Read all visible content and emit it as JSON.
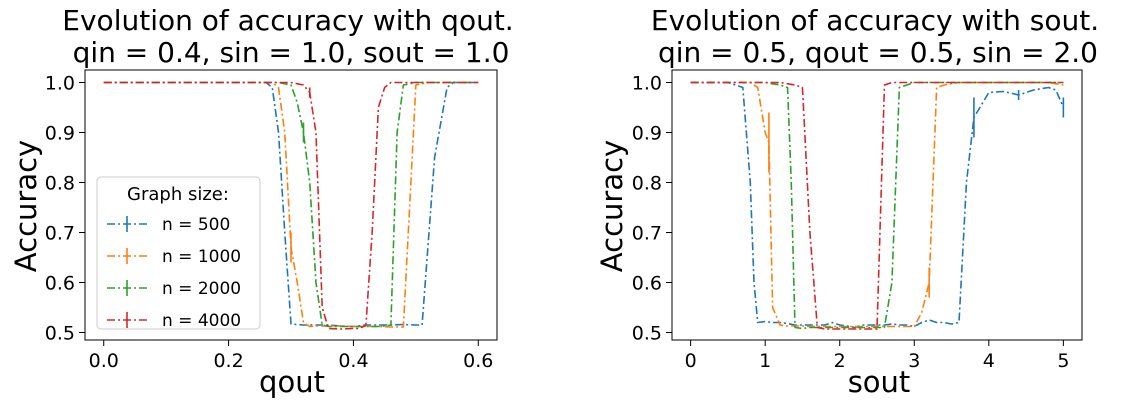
{
  "chart_data": [
    {
      "type": "line",
      "title_line1": "Evolution of accuracy with qout.",
      "title_line2": "qin = 0.4, sin = 1.0, sout = 1.0",
      "xlabel": "qout",
      "ylabel": "Accuracy",
      "xlim": [
        -0.03,
        0.63
      ],
      "ylim": [
        0.485,
        1.025
      ],
      "xticks": [
        0.0,
        0.2,
        0.4,
        0.6
      ],
      "xtick_labels": [
        "0.0",
        "0.2",
        "0.4",
        "0.6"
      ],
      "yticks": [
        0.5,
        0.6,
        0.7,
        0.8,
        0.9,
        1.0
      ],
      "ytick_labels": [
        "0.5",
        "0.6",
        "0.7",
        "0.8",
        "0.9",
        "1.0"
      ],
      "grid": false,
      "legend": {
        "title": "Graph size:",
        "placement": "lower-left",
        "entries": [
          "n = 500",
          "n = 1000",
          "n = 2000",
          "n = 4000"
        ]
      },
      "series": [
        {
          "name": "n = 500",
          "color": "#1f77b4",
          "x": [
            0.0,
            0.04,
            0.08,
            0.12,
            0.16,
            0.2,
            0.24,
            0.26,
            0.27,
            0.28,
            0.29,
            0.3,
            0.32,
            0.34,
            0.36,
            0.38,
            0.4,
            0.42,
            0.44,
            0.46,
            0.48,
            0.5,
            0.51,
            0.53,
            0.55,
            0.56,
            0.58,
            0.6
          ],
          "y": [
            1.0,
            1.0,
            1.0,
            1.0,
            1.0,
            1.0,
            1.0,
            1.0,
            0.99,
            0.9,
            0.7,
            0.517,
            0.515,
            0.515,
            0.515,
            0.513,
            0.512,
            0.515,
            0.515,
            0.515,
            0.516,
            0.515,
            0.515,
            0.85,
            0.99,
            1.0,
            1.0,
            1.0
          ],
          "err": [
            0,
            0,
            0,
            0,
            0,
            0,
            0,
            0,
            0,
            0,
            0,
            0,
            0,
            0,
            0,
            0,
            0,
            0,
            0,
            0,
            0,
            0,
            0,
            0,
            0,
            0,
            0,
            0
          ]
        },
        {
          "name": "n = 1000",
          "color": "#ff7f0e",
          "x": [
            0.0,
            0.04,
            0.08,
            0.12,
            0.16,
            0.2,
            0.24,
            0.27,
            0.28,
            0.29,
            0.3,
            0.31,
            0.32,
            0.33,
            0.34,
            0.36,
            0.38,
            0.4,
            0.42,
            0.44,
            0.46,
            0.48,
            0.49,
            0.5,
            0.52,
            0.54,
            0.56,
            0.58,
            0.6
          ],
          "y": [
            1.0,
            1.0,
            1.0,
            1.0,
            1.0,
            1.0,
            1.0,
            1.0,
            0.99,
            0.9,
            0.67,
            0.6,
            0.52,
            0.512,
            0.513,
            0.513,
            0.513,
            0.512,
            0.512,
            0.512,
            0.511,
            0.511,
            0.75,
            0.995,
            1.0,
            1.0,
            1.0,
            1.0,
            1.0
          ],
          "err": [
            0,
            0,
            0,
            0,
            0,
            0,
            0,
            0,
            0,
            0,
            0.03,
            0,
            0,
            0,
            0,
            0,
            0,
            0,
            0,
            0,
            0,
            0,
            0,
            0,
            0,
            0,
            0,
            0,
            0
          ]
        },
        {
          "name": "n = 2000",
          "color": "#2ca02c",
          "x": [
            0.0,
            0.04,
            0.08,
            0.12,
            0.16,
            0.2,
            0.24,
            0.28,
            0.3,
            0.31,
            0.32,
            0.33,
            0.34,
            0.35,
            0.36,
            0.38,
            0.4,
            0.42,
            0.44,
            0.45,
            0.46,
            0.47,
            0.48,
            0.5,
            0.52,
            0.54,
            0.56,
            0.58,
            0.6
          ],
          "y": [
            1.0,
            1.0,
            1.0,
            1.0,
            1.0,
            1.0,
            1.0,
            1.0,
            0.995,
            0.96,
            0.9,
            0.8,
            0.6,
            0.515,
            0.512,
            0.512,
            0.512,
            0.512,
            0.512,
            0.513,
            0.515,
            0.9,
            0.995,
            1.0,
            1.0,
            1.0,
            1.0,
            1.0,
            1.0
          ],
          "err": [
            0,
            0,
            0,
            0,
            0,
            0,
            0,
            0,
            0,
            0,
            0.02,
            0,
            0,
            0,
            0,
            0,
            0,
            0,
            0,
            0,
            0,
            0,
            0,
            0,
            0,
            0,
            0,
            0,
            0
          ]
        },
        {
          "name": "n = 4000",
          "color": "#d62728",
          "x": [
            0.0,
            0.04,
            0.08,
            0.12,
            0.16,
            0.2,
            0.24,
            0.28,
            0.3,
            0.32,
            0.33,
            0.34,
            0.35,
            0.36,
            0.38,
            0.4,
            0.41,
            0.42,
            0.43,
            0.44,
            0.45,
            0.46,
            0.48,
            0.5,
            0.52,
            0.54,
            0.56,
            0.58,
            0.6
          ],
          "y": [
            1.0,
            1.0,
            1.0,
            1.0,
            1.0,
            1.0,
            1.0,
            1.0,
            1.0,
            0.995,
            0.98,
            0.9,
            0.55,
            0.508,
            0.507,
            0.508,
            0.508,
            0.515,
            0.7,
            0.95,
            0.99,
            1.0,
            1.0,
            1.0,
            1.0,
            1.0,
            1.0,
            1.0,
            1.0
          ],
          "err": [
            0,
            0,
            0,
            0,
            0,
            0,
            0,
            0,
            0,
            0,
            0.01,
            0,
            0,
            0,
            0,
            0,
            0,
            0,
            0,
            0,
            0,
            0,
            0,
            0,
            0,
            0,
            0,
            0,
            0
          ]
        }
      ]
    },
    {
      "type": "line",
      "title_line1": "Evolution of accuracy with sout.",
      "title_line2": "qin = 0.5, qout = 0.5, sin = 2.0",
      "xlabel": "sout",
      "ylabel": "Accuracy",
      "xlim": [
        -0.25,
        5.25
      ],
      "ylim": [
        0.485,
        1.025
      ],
      "xticks": [
        0,
        1,
        2,
        3,
        4,
        5
      ],
      "xtick_labels": [
        "0",
        "1",
        "2",
        "3",
        "4",
        "5"
      ],
      "yticks": [
        0.5,
        0.6,
        0.7,
        0.8,
        0.9,
        1.0
      ],
      "ytick_labels": [
        "0.5",
        "0.6",
        "0.7",
        "0.8",
        "0.9",
        "1.0"
      ],
      "grid": false,
      "series": [
        {
          "name": "n = 500",
          "color": "#1f77b4",
          "x": [
            0.0,
            0.2,
            0.4,
            0.5,
            0.6,
            0.7,
            0.8,
            0.85,
            0.9,
            1.0,
            1.1,
            1.2,
            1.3,
            1.4,
            1.5,
            1.6,
            1.7,
            1.8,
            1.9,
            2.0,
            2.1,
            2.2,
            2.3,
            2.4,
            2.5,
            2.6,
            2.7,
            2.8,
            2.9,
            3.0,
            3.1,
            3.2,
            3.3,
            3.4,
            3.5,
            3.6,
            3.7,
            3.8,
            4.0,
            4.2,
            4.4,
            4.6,
            4.8,
            4.9,
            5.0
          ],
          "y": [
            1.0,
            1.0,
            1.0,
            1.0,
            0.995,
            0.99,
            0.8,
            0.6,
            0.52,
            0.522,
            0.52,
            0.52,
            0.518,
            0.515,
            0.515,
            0.515,
            0.515,
            0.515,
            0.52,
            0.515,
            0.513,
            0.51,
            0.515,
            0.515,
            0.515,
            0.515,
            0.517,
            0.515,
            0.515,
            0.512,
            0.52,
            0.525,
            0.52,
            0.52,
            0.517,
            0.52,
            0.8,
            0.93,
            0.98,
            0.982,
            0.975,
            0.985,
            0.99,
            0.985,
            0.95
          ],
          "err": [
            0,
            0,
            0,
            0,
            0,
            0,
            0,
            0,
            0,
            0,
            0,
            0,
            0,
            0,
            0,
            0,
            0,
            0,
            0,
            0,
            0,
            0,
            0,
            0,
            0,
            0,
            0,
            0,
            0,
            0,
            0,
            0,
            0,
            0,
            0,
            0,
            0,
            0.04,
            0,
            0,
            0.01,
            0,
            0,
            0,
            0.02
          ]
        },
        {
          "name": "n = 1000",
          "color": "#ff7f0e",
          "x": [
            0.0,
            0.2,
            0.4,
            0.6,
            0.8,
            0.9,
            1.0,
            1.05,
            1.1,
            1.2,
            1.3,
            1.4,
            1.5,
            1.6,
            1.8,
            2.0,
            2.2,
            2.4,
            2.6,
            2.8,
            3.0,
            3.1,
            3.2,
            3.3,
            3.4,
            3.6,
            3.8,
            4.0,
            4.2,
            4.4,
            4.6,
            4.8,
            5.0
          ],
          "y": [
            1.0,
            1.0,
            1.0,
            1.0,
            1.0,
            0.99,
            0.9,
            0.88,
            0.55,
            0.515,
            0.513,
            0.513,
            0.513,
            0.512,
            0.512,
            0.512,
            0.512,
            0.512,
            0.512,
            0.512,
            0.512,
            0.54,
            0.6,
            0.99,
            0.995,
            1.0,
            1.0,
            1.0,
            1.0,
            1.0,
            1.0,
            1.0,
            0.995
          ],
          "err": [
            0,
            0,
            0,
            0,
            0,
            0,
            0,
            0.06,
            0,
            0,
            0,
            0,
            0,
            0,
            0,
            0,
            0,
            0,
            0,
            0,
            0,
            0,
            0.03,
            0,
            0,
            0,
            0,
            0,
            0,
            0,
            0,
            0,
            0
          ]
        },
        {
          "name": "n = 2000",
          "color": "#2ca02c",
          "x": [
            0.0,
            0.2,
            0.4,
            0.6,
            0.8,
            1.0,
            1.2,
            1.3,
            1.35,
            1.4,
            1.5,
            1.6,
            1.8,
            2.0,
            2.2,
            2.4,
            2.6,
            2.7,
            2.8,
            2.9,
            3.0,
            3.2,
            3.4,
            3.6,
            3.8,
            4.0,
            4.2,
            4.4,
            4.6,
            4.8,
            5.0
          ],
          "y": [
            1.0,
            1.0,
            1.0,
            1.0,
            1.0,
            1.0,
            0.995,
            0.99,
            0.8,
            0.51,
            0.508,
            0.51,
            0.51,
            0.51,
            0.51,
            0.51,
            0.51,
            0.6,
            0.99,
            0.995,
            1.0,
            1.0,
            1.0,
            1.0,
            1.0,
            1.0,
            1.0,
            1.0,
            1.0,
            1.0,
            1.0
          ],
          "err": [
            0,
            0,
            0,
            0,
            0,
            0,
            0,
            0,
            0,
            0,
            0,
            0,
            0,
            0,
            0,
            0,
            0,
            0,
            0,
            0,
            0,
            0,
            0,
            0,
            0,
            0,
            0,
            0,
            0,
            0,
            0
          ]
        },
        {
          "name": "n = 4000",
          "color": "#d62728",
          "x": [
            0.0,
            0.2,
            0.4,
            0.6,
            0.8,
            1.0,
            1.2,
            1.4,
            1.5,
            1.6,
            1.7,
            1.8,
            2.0,
            2.2,
            2.4,
            2.5,
            2.6,
            2.7,
            2.8,
            3.0,
            3.2,
            3.4,
            3.6,
            3.8,
            4.0,
            4.2,
            4.4,
            4.6,
            4.8,
            5.0
          ],
          "y": [
            1.0,
            1.0,
            1.0,
            1.0,
            1.0,
            1.0,
            1.0,
            0.995,
            0.99,
            0.7,
            0.51,
            0.507,
            0.507,
            0.507,
            0.507,
            0.507,
            0.995,
            1.0,
            1.0,
            1.0,
            1.0,
            1.0,
            1.0,
            1.0,
            1.0,
            1.0,
            1.0,
            1.0,
            1.0,
            1.0
          ],
          "err": [
            0,
            0,
            0,
            0,
            0,
            0,
            0,
            0,
            0,
            0,
            0,
            0,
            0,
            0,
            0,
            0,
            0,
            0,
            0,
            0,
            0,
            0,
            0,
            0,
            0,
            0,
            0,
            0,
            0,
            0
          ]
        }
      ]
    }
  ]
}
